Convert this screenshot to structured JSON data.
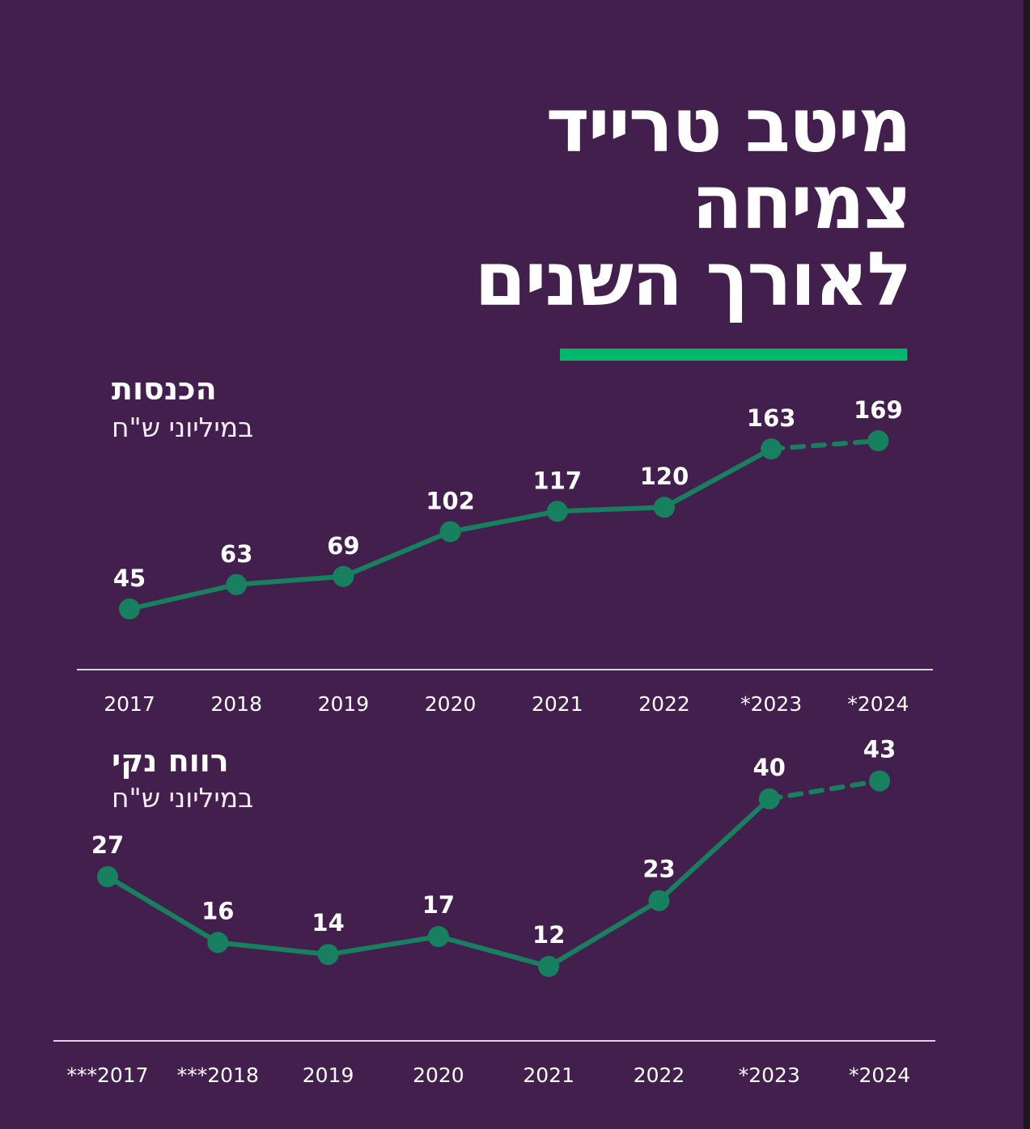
{
  "title": {
    "line1": "מיטב טרייד",
    "line2": "צמיחה",
    "line3": "לאורך השנים"
  },
  "colors": {
    "background": "#421f4c",
    "accent": "#00b86b",
    "series": "#17805f",
    "text": "#ffffff",
    "axis": "#d9d3dc"
  },
  "chart_data": [
    {
      "type": "line",
      "title": "הכנסות",
      "subtitle": "במיליוני ש\"ח",
      "x": [
        "2017",
        "2018",
        "2019",
        "2020",
        "2021",
        "2022",
        "2023*",
        "2024*"
      ],
      "values": [
        45,
        63,
        69,
        102,
        117,
        120,
        163,
        169
      ],
      "value_labels": [
        "45",
        "63",
        "69",
        "102",
        "117",
        "120",
        "163",
        "169"
      ],
      "dashed_segment": [
        "2023*",
        "2024*"
      ],
      "xlabel": "",
      "ylabel": "",
      "grid": false
    },
    {
      "type": "line",
      "title": "רווח נקי",
      "subtitle": "במיליוני ש\"ח",
      "x": [
        "2017***",
        "2018***",
        "2019",
        "2020",
        "2021",
        "2022",
        "2023*",
        "2024*"
      ],
      "values": [
        27,
        16,
        14,
        17,
        12,
        23,
        40,
        43
      ],
      "value_labels": [
        "27",
        "16",
        "14",
        "17",
        "12",
        "23",
        "40",
        "43"
      ],
      "dashed_segment": [
        "2023*",
        "2024*"
      ],
      "xlabel": "",
      "ylabel": "",
      "grid": false
    }
  ]
}
